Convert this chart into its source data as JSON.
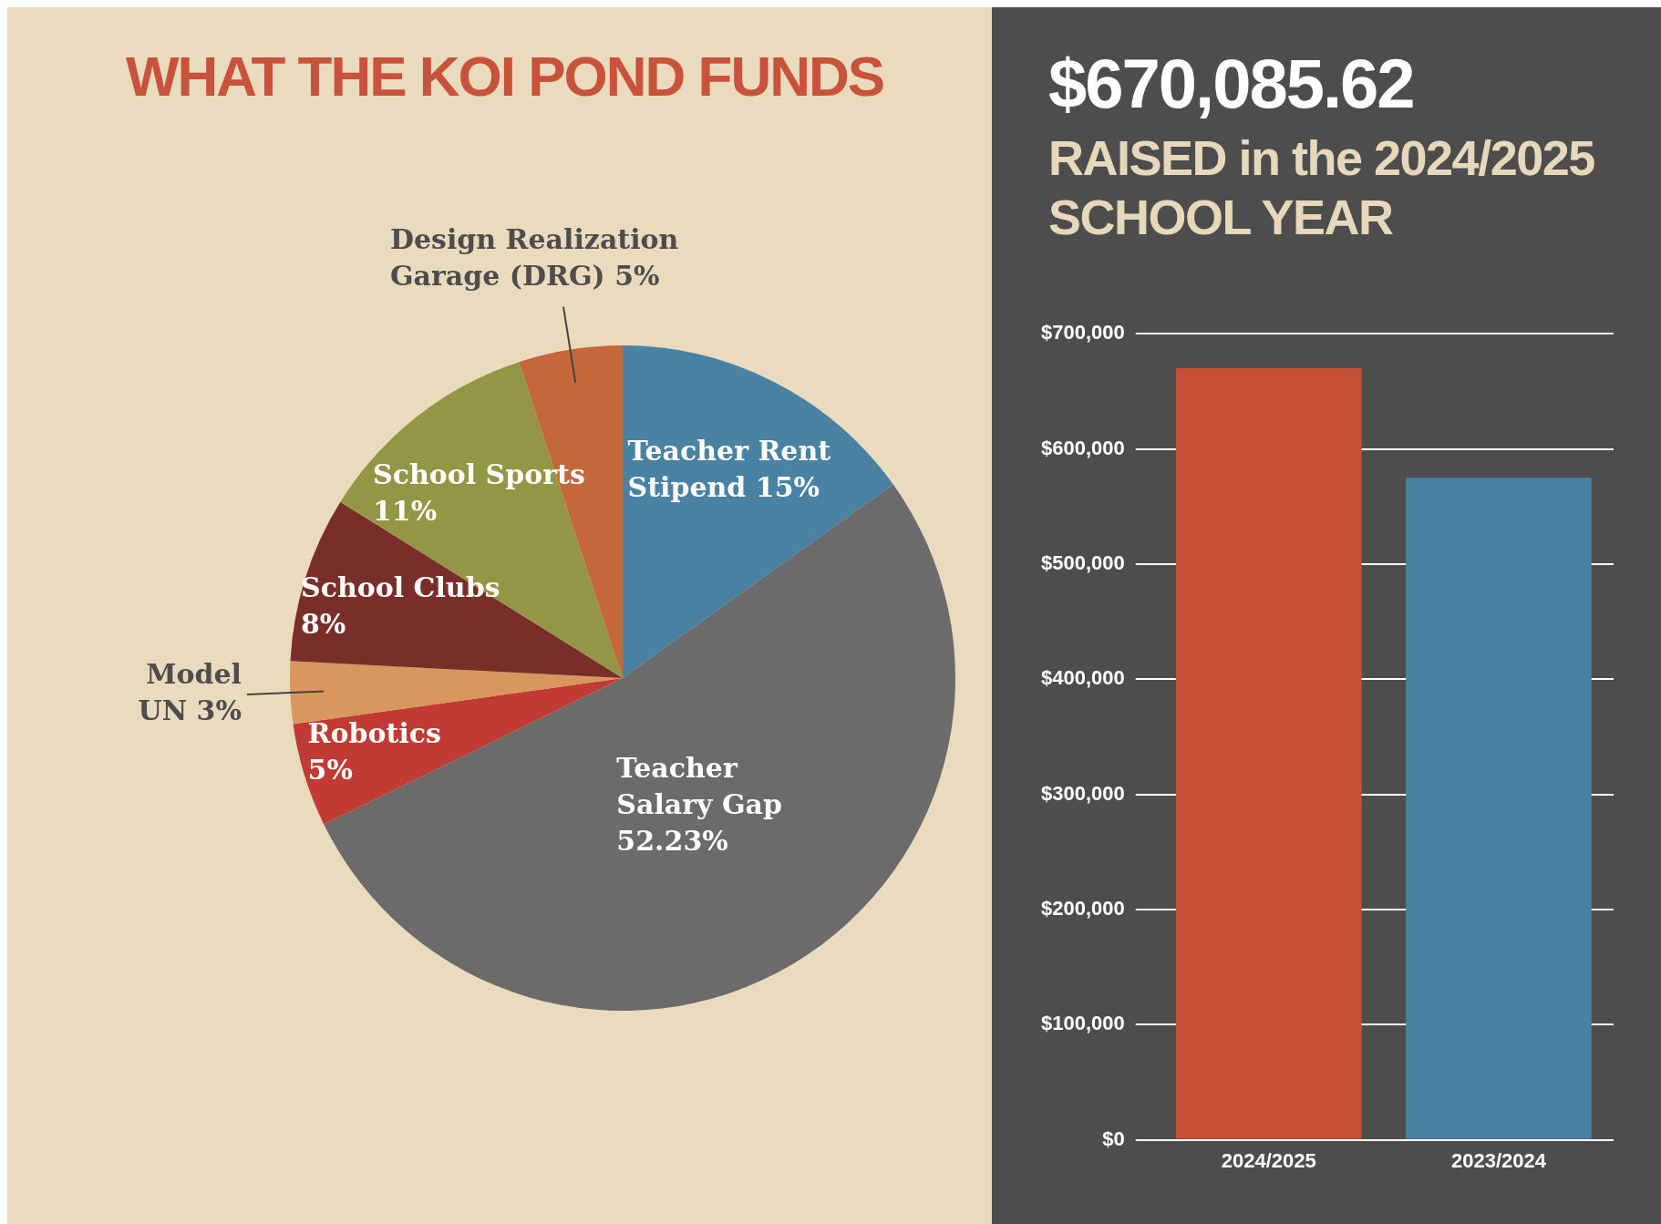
{
  "chart_data": [
    {
      "type": "pie",
      "title": "WHAT THE KOI POND FUNDS",
      "categories": [
        "Teacher Rent Stipend",
        "Teacher Salary Gap",
        "Robotics",
        "Model UN",
        "School Clubs",
        "School Sports",
        "Design Realization Garage (DRG)"
      ],
      "values": [
        15,
        52.23,
        5,
        3,
        8,
        11,
        5
      ],
      "colors": [
        "#4a82a3",
        "#6b6b6b",
        "#c13b34",
        "#d9975e",
        "#7a2e2a",
        "#939645",
        "#c4673a"
      ],
      "value_labels": [
        "15%",
        "52.23%",
        "5%",
        "3%",
        "8%",
        "11%",
        "5%"
      ],
      "legend": false
    },
    {
      "type": "bar",
      "title": "$670,085.62",
      "subtitle": "RAISED in the 2024/2025 SCHOOL YEAR",
      "categories": [
        "2024/2025",
        "2023/2024"
      ],
      "values": [
        670000,
        575000
      ],
      "colors": [
        "#c85036",
        "#4a82a3"
      ],
      "ylim": [
        0,
        700000
      ],
      "yticks": [
        {
          "value": 0,
          "label": "$0"
        },
        {
          "value": 100000,
          "label": "$100,000"
        },
        {
          "value": 200000,
          "label": "$200,000"
        },
        {
          "value": 300000,
          "label": "$300,000"
        },
        {
          "value": 400000,
          "label": "$400,000"
        },
        {
          "value": 500000,
          "label": "$500,000"
        },
        {
          "value": 600000,
          "label": "$600,000"
        },
        {
          "value": 700000,
          "label": "$700,000"
        }
      ],
      "grid": "y",
      "legend": false
    }
  ]
}
